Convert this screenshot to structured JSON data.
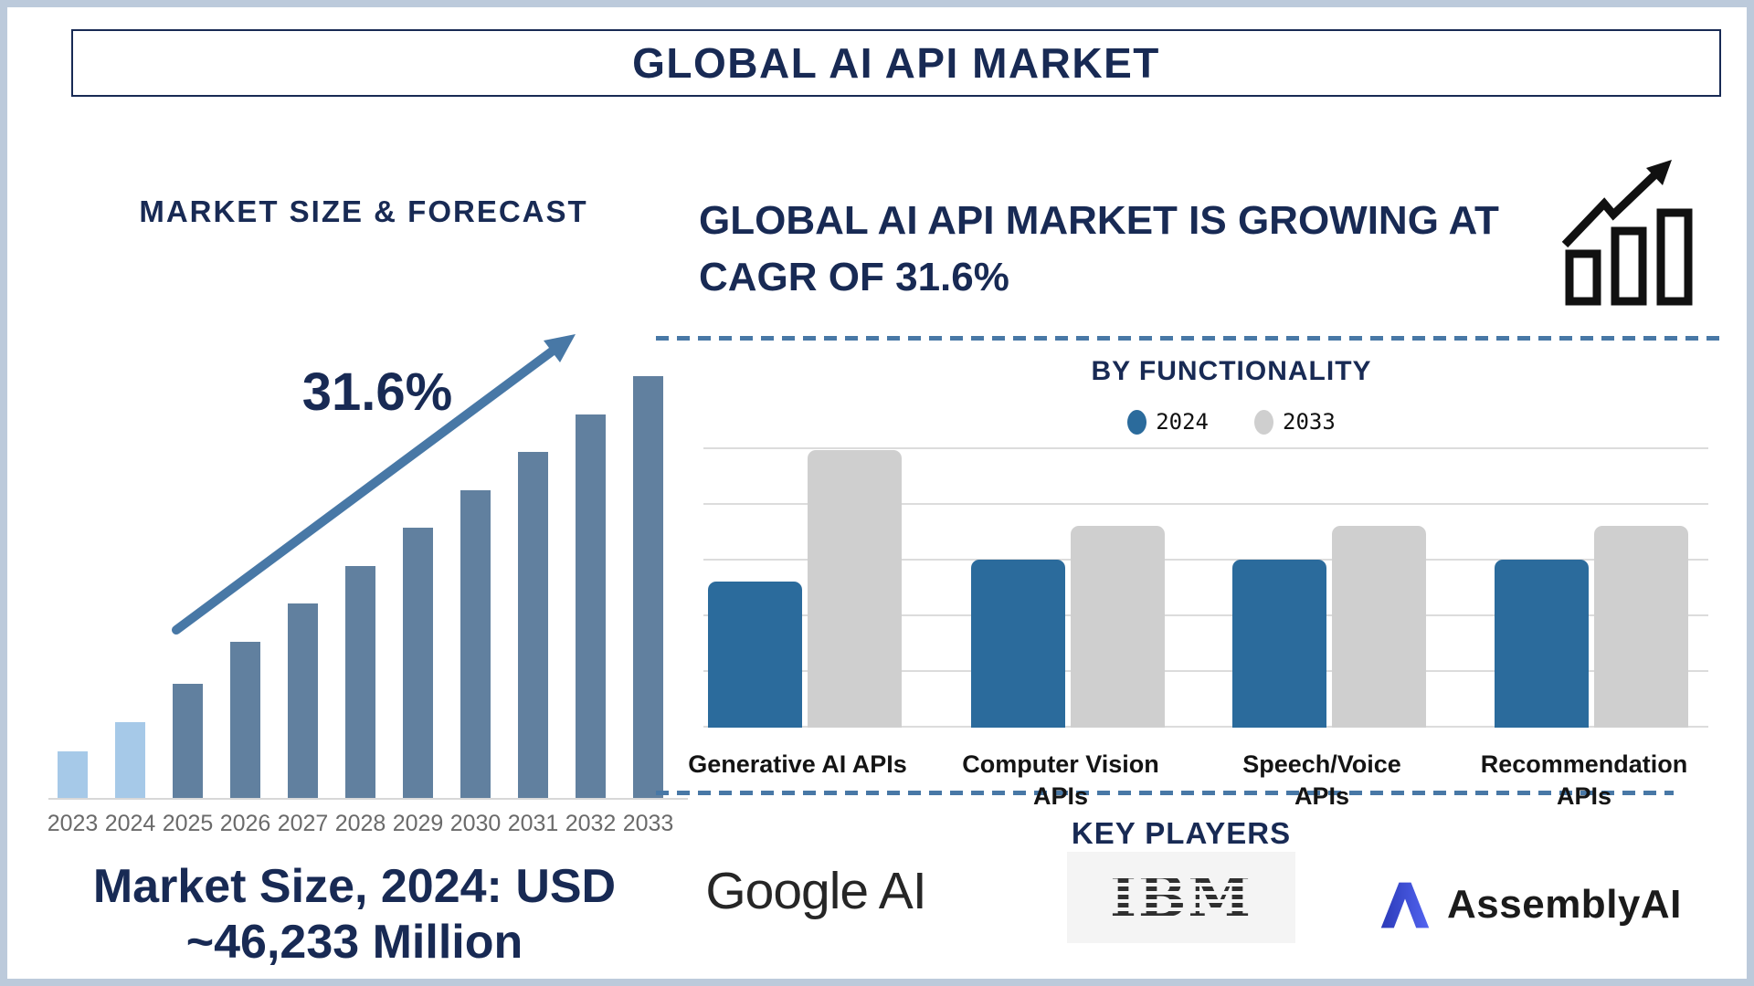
{
  "header": {
    "title": "GLOBAL AI API MARKET"
  },
  "palette": {
    "navy": "#182a54",
    "steel_blue": "#4878a6",
    "gridline": "#dcdcdc",
    "axis_text": "#6a6a6a",
    "frame": "#bccadb",
    "black_text": "#141414",
    "logo_text": "#262626",
    "ibm_dark": "#2f2f2f",
    "ibm_bg": "#f4f4f4",
    "assembly_blue_dark": "#2b3ab8",
    "assembly_blue": "#5264f0",
    "icon_black": "#111111"
  },
  "left_panel": {
    "market_size_lines": [
      "Market Size, 2024: USD",
      "~46,233 Million"
    ]
  },
  "right_panel": {
    "heading_lines": [
      "GLOBAL AI API MARKET IS GROWING AT",
      "CAGR OF 31.6%"
    ],
    "key_players_title": "KEY PLAYERS"
  },
  "players": [
    {
      "name": "Google AI"
    },
    {
      "name": "IBM"
    },
    {
      "name": "AssemblyAI"
    }
  ],
  "chart_data": [
    {
      "type": "bar",
      "title": "MARKET SIZE & FORECAST",
      "categories": [
        "2023",
        "2024",
        "2025",
        "2026",
        "2027",
        "2028",
        "2029",
        "2030",
        "2031",
        "2032",
        "2033"
      ],
      "values": [
        11,
        18,
        27,
        37,
        46,
        55,
        64,
        73,
        82,
        91,
        100
      ],
      "annotation": "31.6%",
      "xlabel": "",
      "ylabel": "",
      "ylim": [
        0,
        100
      ],
      "grid": false,
      "colors": {
        "bars_2023_2024": "#a6c9e8",
        "bars_2025_2033": "#61809f"
      }
    },
    {
      "type": "bar",
      "title": "BY FUNCTIONALITY",
      "categories": [
        "Generative AI APIs",
        "Computer Vision APIs",
        "Speech/Voice APIs",
        "Recommendation APIs"
      ],
      "series": [
        {
          "name": "2024",
          "color": "#2b6b9c",
          "values": [
            52,
            60,
            60,
            60
          ]
        },
        {
          "name": "2033",
          "color": "#cfcfcf",
          "values": [
            99,
            72,
            72,
            72
          ]
        }
      ],
      "xlabel": "",
      "ylabel": "",
      "ylim": [
        0,
        100
      ],
      "grid": true,
      "legend_position": "top"
    }
  ]
}
